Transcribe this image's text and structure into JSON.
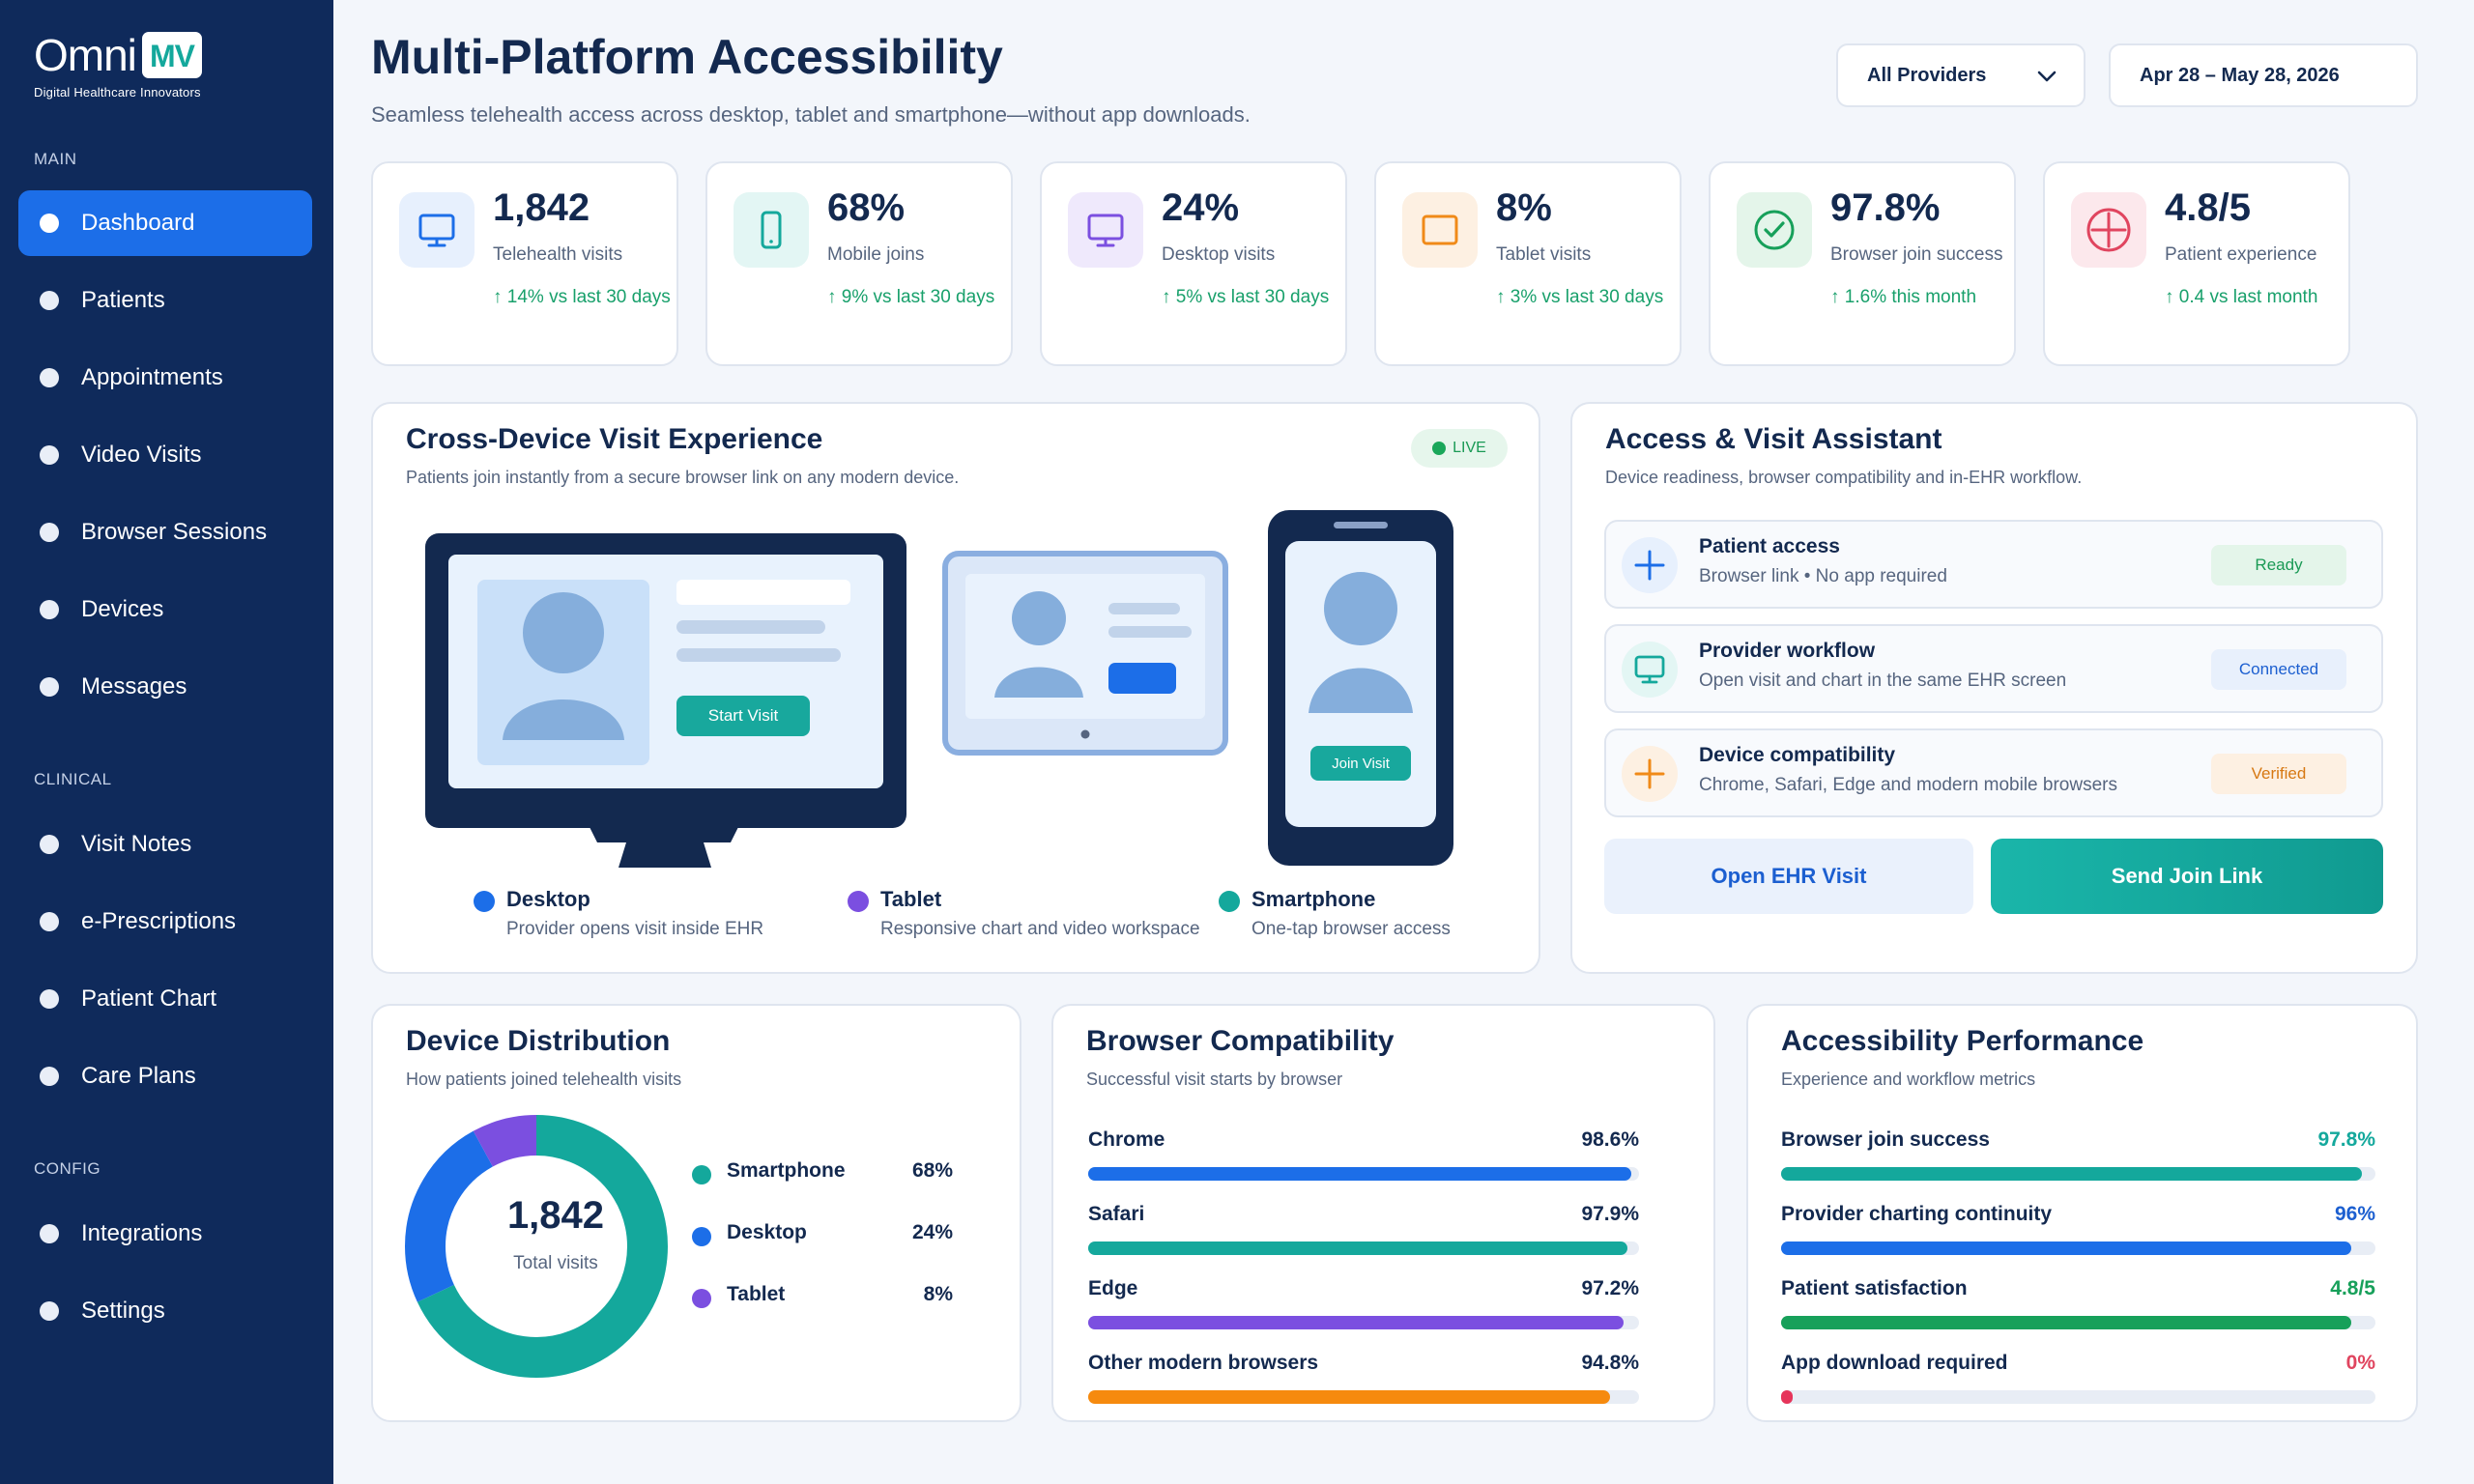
{
  "brand": {
    "name": "Omni",
    "tagline": "Digital Healthcare Innovators",
    "badge_letters": "MV"
  },
  "sidebar": {
    "sections": [
      {
        "label": "MAIN",
        "items": [
          {
            "label": "Dashboard",
            "active": true
          },
          {
            "label": "Patients"
          },
          {
            "label": "Appointments"
          },
          {
            "label": "Video Visits"
          },
          {
            "label": "Browser Sessions"
          },
          {
            "label": "Devices"
          },
          {
            "label": "Messages"
          }
        ]
      },
      {
        "label": "CLINICAL",
        "items": [
          {
            "label": "Visit Notes"
          },
          {
            "label": "e-Prescriptions"
          },
          {
            "label": "Patient Chart"
          },
          {
            "label": "Care Plans"
          }
        ]
      },
      {
        "label": "CONFIG",
        "items": [
          {
            "label": "Integrations"
          },
          {
            "label": "Settings"
          }
        ]
      }
    ]
  },
  "header": {
    "title": "Multi-Platform Accessibility",
    "subtitle": "Seamless telehealth access across desktop, tablet and smartphone—without app downloads.",
    "provider_filter": "All Providers",
    "date_range": "Apr 28 – May 28, 2026"
  },
  "kpis": [
    {
      "value": "1,842",
      "label": "Telehealth visits",
      "trend": "↑ 14% vs last 30 days",
      "icon": "monitor-icon",
      "color": "#1c6ee8",
      "bg": "#e7f0fd"
    },
    {
      "value": "68%",
      "label": "Mobile joins",
      "trend": "↑ 9% vs last 30 days",
      "icon": "smartphone-icon",
      "color": "#14a89c",
      "bg": "#e3f6f4"
    },
    {
      "value": "24%",
      "label": "Desktop visits",
      "trend": "↑ 5% vs last 30 days",
      "icon": "desktop-icon",
      "color": "#7b4fe0",
      "bg": "#efe9fc"
    },
    {
      "value": "8%",
      "label": "Tablet visits",
      "trend": "↑ 3% vs last 30 days",
      "icon": "tablet-icon",
      "color": "#f08a18",
      "bg": "#fdf0e2"
    },
    {
      "value": "97.8%",
      "label": "Browser join success",
      "trend": "↑ 1.6% this month",
      "icon": "check-circle-icon",
      "color": "#17a05a",
      "bg": "#e4f5ea"
    },
    {
      "value": "4.8/5",
      "label": "Patient experience",
      "trend": "↑ 0.4 vs last month",
      "icon": "medical-cross-icon",
      "color": "#e0455f",
      "bg": "#fce8ec"
    }
  ],
  "cross_device": {
    "title": "Cross-Device Visit Experience",
    "subtitle": "Patients join instantly from a secure browser link on any modern device.",
    "live_label": "LIVE",
    "start_visit_label": "Start Visit",
    "join_visit_label": "Join Visit",
    "devices": [
      {
        "name": "Desktop",
        "desc": "Provider opens visit inside EHR",
        "color": "#1c6ee8"
      },
      {
        "name": "Tablet",
        "desc": "Responsive chart and video workspace",
        "color": "#7b4fe0"
      },
      {
        "name": "Smartphone",
        "desc": "One-tap browser access",
        "color": "#14a89c"
      }
    ]
  },
  "assistant": {
    "title": "Access & Visit Assistant",
    "subtitle": "Device readiness, browser compatibility and in-EHR workflow.",
    "rows": [
      {
        "title": "Patient access",
        "desc": "Browser link • No app required",
        "status": "Ready",
        "icon": "plus-icon",
        "color": "#1c6ee8",
        "badge_bg": "#e4f5ea",
        "badge_color": "#1a9a55"
      },
      {
        "title": "Provider workflow",
        "desc": "Open visit and chart in the same EHR screen",
        "status": "Connected",
        "icon": "monitor-icon",
        "color": "#14a89c",
        "badge_bg": "#e8f0fc",
        "badge_color": "#1c5fd0"
      },
      {
        "title": "Device compatibility",
        "desc": "Chrome, Safari, Edge and modern mobile browsers",
        "status": "Verified",
        "icon": "plus-icon",
        "color": "#f08a18",
        "badge_bg": "#fdf0e2",
        "badge_color": "#d77812"
      }
    ],
    "open_ehr_label": "Open EHR Visit",
    "send_link_label": "Send Join Link"
  },
  "distribution": {
    "title": "Device Distribution",
    "subtitle": "How patients joined telehealth visits",
    "total_value": "1,842",
    "total_label": "Total visits"
  },
  "browser": {
    "title": "Browser Compatibility",
    "subtitle": "Successful visit starts by browser"
  },
  "performance": {
    "title": "Accessibility Performance",
    "subtitle": "Experience and workflow metrics"
  },
  "chart_data": [
    {
      "type": "pie",
      "categories": [
        "Smartphone",
        "Desktop",
        "Tablet"
      ],
      "values": [
        68,
        24,
        8
      ],
      "value_labels": [
        "68%",
        "24%",
        "8%"
      ],
      "colors": [
        "#14a89c",
        "#1c6ee8",
        "#7b4fe0"
      ]
    },
    {
      "type": "bar",
      "categories": [
        "Chrome",
        "Safari",
        "Edge",
        "Other modern browsers"
      ],
      "values": [
        98.6,
        97.9,
        97.2,
        94.8
      ],
      "value_labels": [
        "98.6%",
        "97.9%",
        "97.2%",
        "94.8%"
      ],
      "colors": [
        "#1c6ee8",
        "#14a89c",
        "#7b4fe0",
        "#f68a0e"
      ],
      "value_color": "#13294f",
      "ylim": [
        0,
        100
      ]
    },
    {
      "type": "bar",
      "categories": [
        "Browser join success",
        "Provider charting continuity",
        "Patient satisfaction",
        "App download required"
      ],
      "values": [
        97.8,
        96,
        96,
        0
      ],
      "value_labels": [
        "97.8%",
        "96%",
        "4.8/5",
        "0%"
      ],
      "colors": [
        "#14a89c",
        "#1c6ee8",
        "#17a05a",
        "#e6345a"
      ],
      "value_colors": [
        "#14a89c",
        "#1c5fd0",
        "#17a05a",
        "#e0455f"
      ],
      "ylim": [
        0,
        100
      ]
    }
  ]
}
